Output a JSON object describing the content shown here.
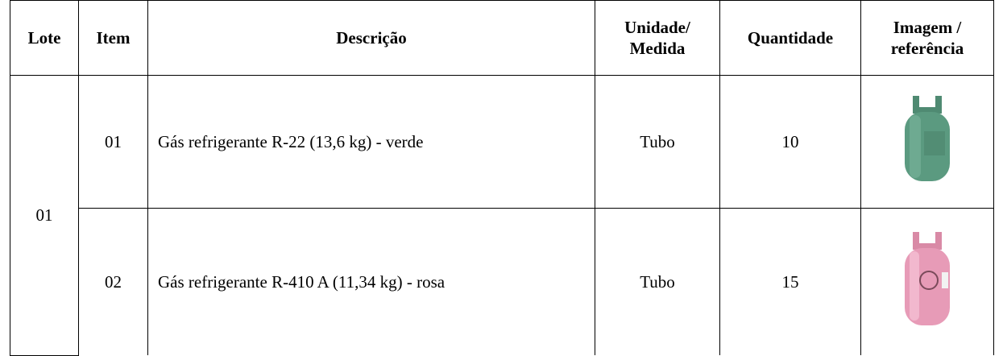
{
  "table": {
    "header": [
      "Lote",
      "Item",
      "Descrição",
      "Unidade/ Medida",
      "Quantidade",
      "Imagem / referência"
    ],
    "lote": "01",
    "rows": [
      [
        "01",
        "Gás refrigerante R-22 (13,6 kg) - verde",
        "Tubo",
        10
      ],
      [
        "02",
        "Gás refrigerante R-410 A (11,34 kg) - rosa",
        "Tubo",
        15
      ]
    ]
  }
}
